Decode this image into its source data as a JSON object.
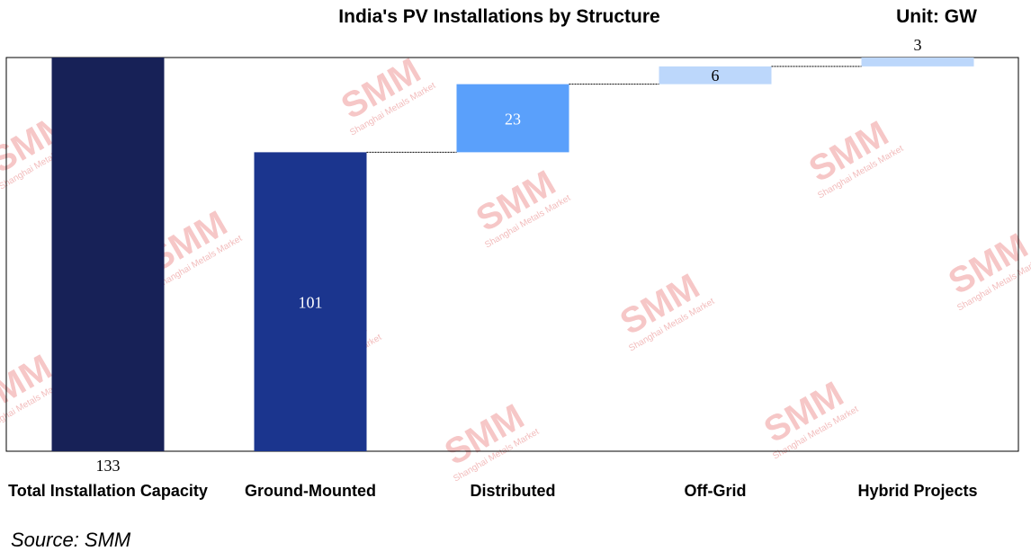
{
  "chart_data": {
    "type": "waterfall",
    "title": "India's PV Installations by Structure",
    "unit_label": "Unit: GW",
    "categories": [
      "Total Installation Capacity",
      "Ground-Mounted",
      "Distributed",
      "Off-Grid",
      "Hybrid Projects"
    ],
    "values": [
      133,
      101,
      23,
      6,
      3
    ],
    "bar_colors": [
      "#172157",
      "#1b358e",
      "#5aa0fb",
      "#bcd7fb",
      "#bcd7fb"
    ],
    "label_colors": [
      "#000000",
      "#ffffff",
      "#ffffff",
      "#000000",
      "#000000"
    ],
    "ylim": [
      0,
      133
    ],
    "connector_lines": true
  },
  "watermark": {
    "brand": "SMM",
    "subtitle": "Shanghai Metals Market"
  },
  "source": "Source:  SMM"
}
